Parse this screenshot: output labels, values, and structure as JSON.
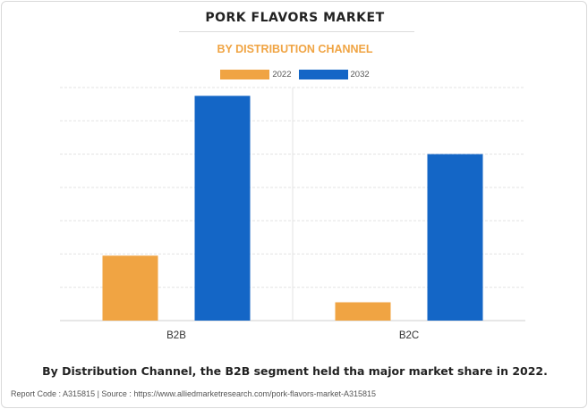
{
  "chart_data": {
    "type": "bar",
    "title": "PORK FLAVORS MARKET",
    "subtitle": "BY DISTRIBUTION CHANNEL",
    "categories": [
      "B2B",
      "B2C"
    ],
    "series": [
      {
        "name": "2022",
        "values": [
          19.5,
          5.5
        ],
        "color": "#f0a443"
      },
      {
        "name": "2032",
        "values": [
          67.5,
          50
        ],
        "color": "#1466c6"
      }
    ],
    "ylim": [
      0,
      70
    ],
    "grid": true,
    "legend_position": "top-center",
    "xlabel": "",
    "ylabel": ""
  },
  "caption": "By Distribution Channel, the B2B segment held tha major market share in 2022.",
  "footer": "Report Code : A315815  |  Source : https://www.alliedmarketresearch.com/pork-flavors-market-A315815"
}
